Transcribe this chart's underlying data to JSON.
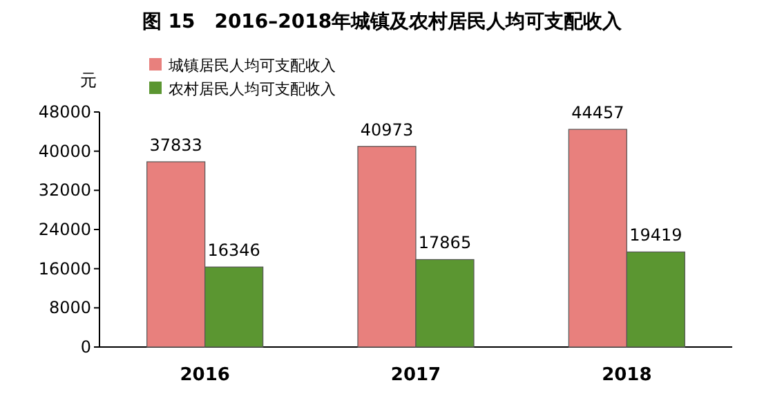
{
  "chart_data": {
    "type": "bar",
    "title": "图 15　2016–2018年城镇及农村居民人均可支配收入",
    "ylabel": "元",
    "categories": [
      "2016",
      "2017",
      "2018"
    ],
    "series": [
      {
        "name": "城镇居民人均可支配收入",
        "color": "#e8807d",
        "values": [
          37833,
          40973,
          44457
        ]
      },
      {
        "name": "农村居民人均可支配收入",
        "color": "#5b9631",
        "values": [
          16346,
          17865,
          19419
        ]
      }
    ],
    "ylim": [
      0,
      48000
    ],
    "yticks": [
      0,
      8000,
      16000,
      24000,
      32000,
      40000,
      48000
    ],
    "data_labels": true,
    "legend": "top left"
  }
}
